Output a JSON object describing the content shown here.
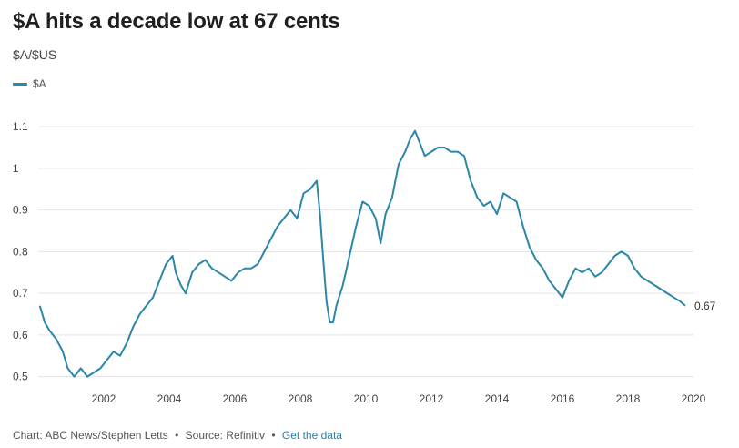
{
  "chart_data": {
    "type": "line",
    "title": "$A hits a decade low at 67 cents",
    "ylabel": "$A/$US",
    "xlim": [
      2000.0,
      2020.0
    ],
    "ylim": [
      0.475,
      1.12
    ],
    "y_ticks": [
      0.5,
      0.6,
      0.7,
      0.8,
      0.9,
      1,
      1.1
    ],
    "y_tick_labels": [
      "0.5",
      "0.6",
      "0.7",
      "0.8",
      "0.9",
      "1",
      "1.1"
    ],
    "x_ticks": [
      2002,
      2004,
      2006,
      2008,
      2010,
      2012,
      2014,
      2016,
      2018,
      2020
    ],
    "x_tick_labels": [
      "2002",
      "2004",
      "2006",
      "2008",
      "2010",
      "2012",
      "2014",
      "2016",
      "2018",
      "2020"
    ],
    "grid": "horizontal",
    "legend_position": "top-left",
    "end_label": "0.67",
    "series": [
      {
        "name": "$A",
        "color": "#2b86a8",
        "x": [
          2000.05,
          2000.2,
          2000.35,
          2000.55,
          2000.75,
          2000.9,
          2001.1,
          2001.3,
          2001.5,
          2001.7,
          2001.9,
          2002.1,
          2002.3,
          2002.5,
          2002.7,
          2002.9,
          2003.1,
          2003.3,
          2003.5,
          2003.7,
          2003.9,
          2004.1,
          2004.2,
          2004.35,
          2004.5,
          2004.7,
          2004.9,
          2005.1,
          2005.3,
          2005.5,
          2005.7,
          2005.9,
          2006.1,
          2006.3,
          2006.5,
          2006.7,
          2006.9,
          2007.1,
          2007.3,
          2007.5,
          2007.7,
          2007.9,
          2008.1,
          2008.3,
          2008.5,
          2008.6,
          2008.7,
          2008.8,
          2008.9,
          2009.0,
          2009.1,
          2009.3,
          2009.5,
          2009.7,
          2009.9,
          2010.1,
          2010.3,
          2010.45,
          2010.6,
          2010.8,
          2011.0,
          2011.2,
          2011.35,
          2011.5,
          2011.65,
          2011.8,
          2012.0,
          2012.2,
          2012.4,
          2012.6,
          2012.8,
          2013.0,
          2013.2,
          2013.4,
          2013.6,
          2013.8,
          2014.0,
          2014.2,
          2014.4,
          2014.6,
          2014.8,
          2015.0,
          2015.2,
          2015.4,
          2015.6,
          2015.8,
          2016.0,
          2016.2,
          2016.4,
          2016.6,
          2016.8,
          2017.0,
          2017.2,
          2017.4,
          2017.6,
          2017.8,
          2018.0,
          2018.2,
          2018.4,
          2018.6,
          2018.8,
          2019.0,
          2019.2,
          2019.4,
          2019.6,
          2019.75
        ],
        "values": [
          0.67,
          0.63,
          0.61,
          0.59,
          0.56,
          0.52,
          0.5,
          0.52,
          0.5,
          0.51,
          0.52,
          0.54,
          0.56,
          0.55,
          0.58,
          0.62,
          0.65,
          0.67,
          0.69,
          0.73,
          0.77,
          0.79,
          0.75,
          0.72,
          0.7,
          0.75,
          0.77,
          0.78,
          0.76,
          0.75,
          0.74,
          0.73,
          0.75,
          0.76,
          0.76,
          0.77,
          0.8,
          0.83,
          0.86,
          0.88,
          0.9,
          0.88,
          0.94,
          0.95,
          0.97,
          0.89,
          0.78,
          0.68,
          0.63,
          0.63,
          0.67,
          0.72,
          0.79,
          0.86,
          0.92,
          0.91,
          0.88,
          0.82,
          0.89,
          0.93,
          1.01,
          1.04,
          1.07,
          1.09,
          1.06,
          1.03,
          1.04,
          1.05,
          1.05,
          1.04,
          1.04,
          1.03,
          0.97,
          0.93,
          0.91,
          0.92,
          0.89,
          0.94,
          0.93,
          0.92,
          0.86,
          0.81,
          0.78,
          0.76,
          0.73,
          0.71,
          0.69,
          0.73,
          0.76,
          0.75,
          0.76,
          0.74,
          0.75,
          0.77,
          0.79,
          0.8,
          0.79,
          0.76,
          0.74,
          0.73,
          0.72,
          0.71,
          0.7,
          0.69,
          0.68,
          0.67
        ]
      }
    ],
    "footer": {
      "credit": "Chart: ABC News/Stephen Letts",
      "separator": "•",
      "source": "Source: Refinitiv",
      "link": "Get the data"
    }
  }
}
